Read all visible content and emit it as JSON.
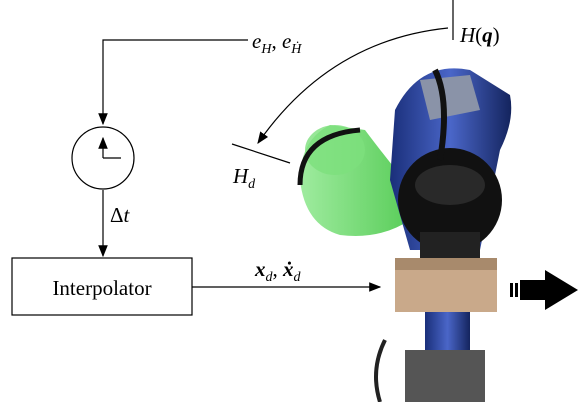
{
  "labels": {
    "error": [
      {
        "text": "e",
        "style": "italic"
      },
      {
        "text": "H",
        "style": "sub"
      },
      {
        "text": ", ",
        "style": "normal"
      },
      {
        "text": "e",
        "style": "italic"
      },
      {
        "text": "Ḣ",
        "style": "sub"
      }
    ],
    "target": [
      {
        "text": "H",
        "style": "italic"
      },
      {
        "text": "(",
        "style": "normal"
      },
      {
        "text": "q",
        "style": "bold"
      },
      {
        "text": ")",
        "style": "normal"
      }
    ],
    "desired": [
      {
        "text": "H",
        "style": "italic"
      },
      {
        "text": "d",
        "style": "sub"
      }
    ],
    "timestep": [
      {
        "text": "Δ",
        "style": "normal"
      },
      {
        "text": "t",
        "style": "italic"
      }
    ],
    "pose": [
      {
        "text": "x",
        "style": "bold"
      },
      {
        "text": "d",
        "style": "sub"
      },
      {
        "text": ", ",
        "style": "normal"
      },
      {
        "text": "ẋ",
        "style": "bold"
      },
      {
        "text": "d",
        "style": "sub"
      }
    ]
  },
  "nodes": {
    "interpolator": {
      "label": "Interpolator"
    }
  }
}
